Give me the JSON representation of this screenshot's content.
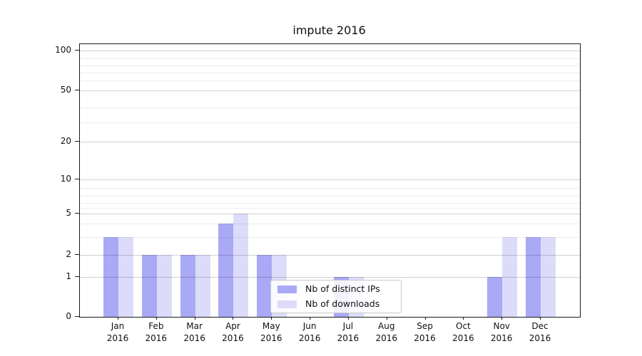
{
  "chart_data": {
    "type": "bar",
    "title": "impute 2016",
    "year": "2016",
    "categories": [
      "Jan",
      "Feb",
      "Mar",
      "Apr",
      "May",
      "Jun",
      "Jul",
      "Aug",
      "Sep",
      "Oct",
      "Nov",
      "Dec"
    ],
    "series": [
      {
        "name": "Nb of distinct IPs",
        "color": "#a9a9f5",
        "values": [
          3,
          2,
          2,
          4,
          2,
          0,
          1,
          0,
          0,
          0,
          1,
          3
        ]
      },
      {
        "name": "Nb of downloads",
        "color": "#dcdcfa",
        "values": [
          3,
          2,
          2,
          5,
          2,
          0,
          1,
          0,
          0,
          0,
          3,
          3
        ]
      }
    ],
    "yticks": [
      0,
      1,
      2,
      5,
      10,
      20,
      50,
      100
    ],
    "yminor": [
      3,
      4,
      6,
      7,
      8,
      9,
      30,
      40,
      60,
      70,
      80,
      90
    ],
    "ylim": [
      0,
      100
    ],
    "scale": "log-like",
    "grid": true,
    "legend_position": "lower center"
  }
}
